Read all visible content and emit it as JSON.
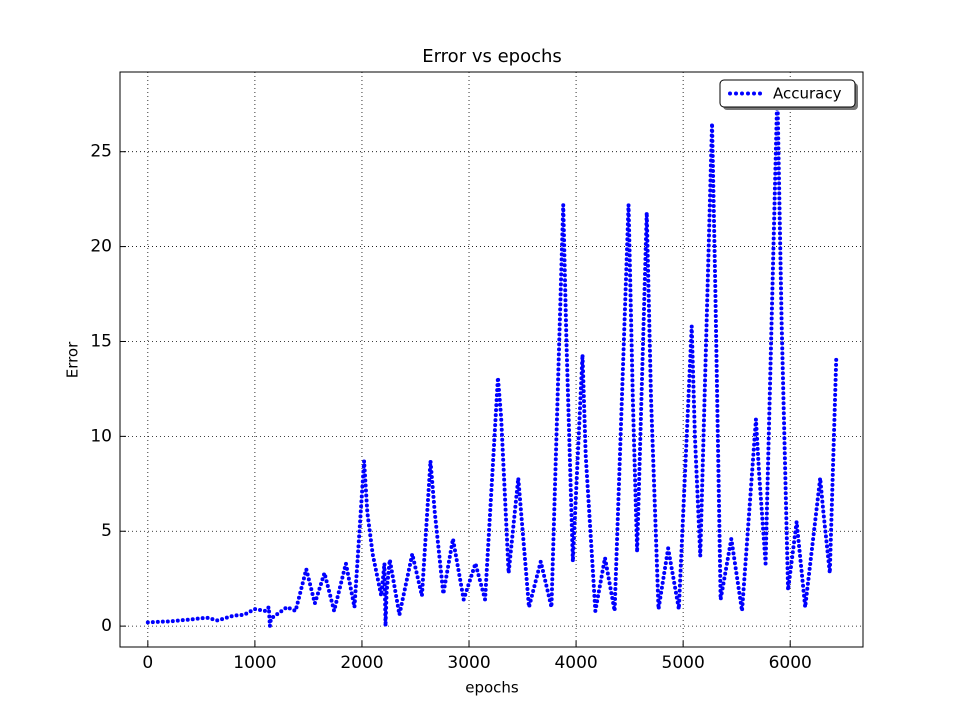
{
  "chart_data": {
    "type": "line",
    "title": "Error vs epochs",
    "xlabel": "epochs",
    "ylabel": "Error",
    "x": [
      0,
      200,
      400,
      550,
      650,
      800,
      900,
      1000,
      1100,
      1130,
      1140,
      1150,
      1250,
      1300,
      1380,
      1480,
      1560,
      1650,
      1740,
      1850,
      1930,
      2020,
      2050,
      2100,
      2180,
      2210,
      2220,
      2230,
      2260,
      2350,
      2470,
      2560,
      2640,
      2680,
      2760,
      2850,
      2950,
      3060,
      3150,
      3270,
      3300,
      3370,
      3460,
      3560,
      3670,
      3770,
      3880,
      3910,
      3970,
      4060,
      4090,
      4180,
      4270,
      4360,
      4490,
      4530,
      4570,
      4660,
      4700,
      4770,
      4860,
      4960,
      5080,
      5110,
      5160,
      5270,
      5300,
      5350,
      5450,
      5550,
      5680,
      5710,
      5770,
      5880,
      5920,
      5980,
      6060,
      6140,
      6280,
      6310,
      6370,
      6430
    ],
    "series": [
      {
        "name": "Accuracy",
        "color": "#0000ff",
        "values": [
          0.2,
          0.25,
          0.35,
          0.45,
          0.3,
          0.55,
          0.6,
          0.9,
          0.8,
          1.0,
          0.0,
          0.4,
          0.8,
          1.0,
          0.8,
          3.0,
          1.2,
          2.8,
          0.8,
          3.3,
          1.0,
          8.7,
          6,
          3.8,
          1.6,
          3.3,
          0,
          1.8,
          3.5,
          0.6,
          3.8,
          1.6,
          8.7,
          6,
          1.7,
          4.6,
          1.4,
          3.3,
          1.4,
          13.1,
          11,
          2.8,
          7.8,
          1.0,
          3.4,
          1.0,
          22.2,
          15,
          3.4,
          14.3,
          9,
          0.8,
          3.6,
          0.8,
          22.2,
          12,
          3.9,
          21.8,
          12,
          0.9,
          4.1,
          0.9,
          15.8,
          10,
          3.7,
          26.5,
          18,
          1.4,
          4.6,
          0.8,
          10.9,
          8,
          3.3,
          28.2,
          16,
          1.9,
          5.5,
          1.0,
          7.8,
          6,
          2.8,
          14.1
        ]
      }
    ],
    "xlim": [
      -260,
      6680
    ],
    "ylim": [
      -1.1,
      29.2
    ],
    "xticks": [
      0,
      1000,
      2000,
      3000,
      4000,
      5000,
      6000
    ],
    "yticks": [
      0,
      5,
      10,
      15,
      20,
      25
    ],
    "grid": true,
    "legend": "upper right"
  }
}
